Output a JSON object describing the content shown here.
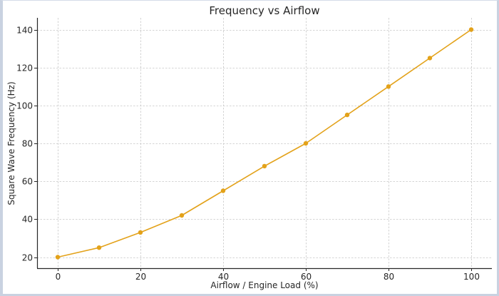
{
  "chart_data": {
    "type": "line",
    "title": "Frequency vs Airflow",
    "xlabel": "Airflow / Engine Load (%)",
    "ylabel": "Square Wave Frequency (Hz)",
    "x": [
      0,
      10,
      20,
      30,
      40,
      50,
      60,
      70,
      80,
      90,
      100
    ],
    "series": [
      {
        "name": "Frequency",
        "values": [
          20,
          25,
          33,
          42,
          55,
          68,
          80,
          95,
          110,
          125,
          140
        ],
        "color": "#e3a21a",
        "marker": "circle"
      }
    ],
    "xticks": [
      0,
      20,
      40,
      60,
      80,
      100
    ],
    "yticks": [
      20,
      40,
      60,
      80,
      100,
      120,
      140
    ],
    "xlim": [
      -5,
      105
    ],
    "ylim": [
      14,
      146
    ],
    "grid": true,
    "legend": null
  },
  "colors": {
    "line": "#e3a21a",
    "grid": "#c8c8c8",
    "axis": "#262626",
    "frame": "#c9d2e1"
  }
}
